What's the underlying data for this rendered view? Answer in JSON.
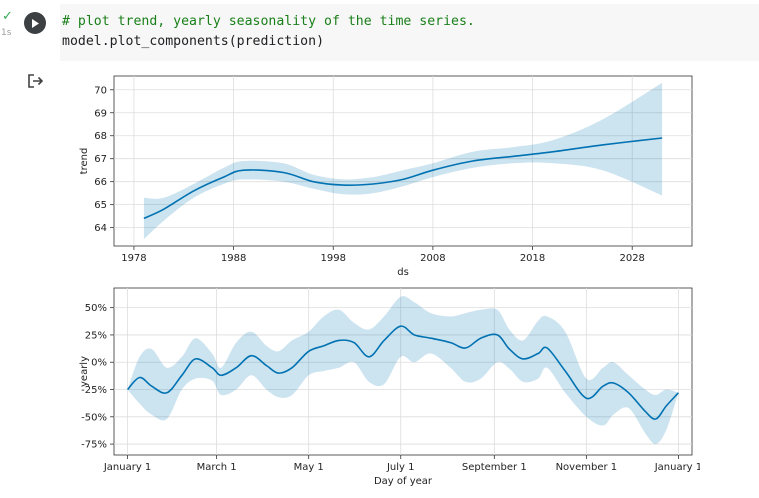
{
  "cell": {
    "status": "✓",
    "exec_time": "1s",
    "code_lines": [
      "# plot trend, yearly seasonality of the time series.",
      "model.plot_components(prediction)"
    ]
  },
  "colors": {
    "line": "#0072b2",
    "band": "#0072b2",
    "grid": "#dddddd",
    "comment": "#1a801a"
  },
  "icons": {
    "run": "play-icon",
    "output": "output-redirect-icon"
  },
  "chart_data": [
    {
      "type": "line",
      "xlabel": "ds",
      "ylabel": "trend",
      "xlim": [
        1976,
        2034
      ],
      "ylim": [
        63.2,
        70.6
      ],
      "xticks": [
        "1978",
        "1988",
        "1998",
        "2008",
        "2018",
        "2028"
      ],
      "yticks": [
        "64",
        "65",
        "66",
        "67",
        "68",
        "69",
        "70"
      ],
      "grid": true,
      "series": [
        {
          "x": [
            1979,
            1981,
            1984,
            1987,
            1989,
            1993,
            1996,
            1999,
            2002,
            2005,
            2008,
            2012,
            2016,
            2020,
            2025,
            2031
          ],
          "y": [
            64.4,
            64.8,
            65.6,
            66.2,
            66.5,
            66.4,
            66.0,
            65.85,
            65.9,
            66.1,
            66.5,
            66.9,
            67.1,
            67.3,
            67.6,
            67.9
          ],
          "lower": [
            63.5,
            64.3,
            65.3,
            65.9,
            66.1,
            66.0,
            65.7,
            65.45,
            65.5,
            65.8,
            66.2,
            66.6,
            66.8,
            66.8,
            66.5,
            65.4
          ],
          "upper": [
            65.3,
            65.3,
            65.9,
            66.6,
            66.9,
            66.8,
            66.3,
            66.1,
            66.2,
            66.5,
            66.8,
            67.3,
            67.5,
            67.8,
            68.7,
            70.3
          ]
        }
      ]
    },
    {
      "type": "line",
      "xlabel": "Day of year",
      "ylabel": "yearly",
      "xlim": [
        -9,
        374
      ],
      "ylim": [
        -85,
        68
      ],
      "xticks": [
        "January 1",
        "March 1",
        "May 1",
        "July 1",
        "September 1",
        "November 1",
        "January 1"
      ],
      "xtick_values": [
        0,
        59,
        120,
        181,
        243,
        304,
        365
      ],
      "yticks": [
        "50%",
        "25%",
        "0%",
        "-25%",
        "-50%",
        "-75%"
      ],
      "ytick_values": [
        50,
        25,
        0,
        -25,
        -50,
        -75
      ],
      "grid": true,
      "series": [
        {
          "x": [
            0,
            8,
            16,
            26,
            36,
            45,
            56,
            62,
            72,
            82,
            92,
            100,
            109,
            120,
            130,
            140,
            150,
            160,
            170,
            181,
            190,
            201,
            214,
            224,
            234,
            245,
            253,
            262,
            272,
            278,
            290,
            304,
            315,
            322,
            332,
            343,
            350,
            357,
            365
          ],
          "y": [
            -25,
            -14,
            -22,
            -28,
            -12,
            3,
            -5,
            -12,
            -5,
            6,
            -3,
            -10,
            -5,
            10,
            15,
            20,
            18,
            5,
            20,
            33,
            25,
            22,
            18,
            13,
            22,
            25,
            12,
            3,
            8,
            13,
            -8,
            -33,
            -22,
            -19,
            -28,
            -45,
            -52,
            -40,
            -28
          ],
          "lower": [
            -25,
            -38,
            -48,
            -52,
            -25,
            -15,
            -17,
            -30,
            -25,
            -12,
            -25,
            -32,
            -30,
            -12,
            -8,
            -5,
            0,
            -18,
            -20,
            5,
            0,
            8,
            -5,
            -18,
            -15,
            0,
            -6,
            -18,
            -15,
            -5,
            -28,
            -50,
            -58,
            -48,
            -42,
            -65,
            -75,
            -62,
            -28
          ],
          "upper": [
            -25,
            5,
            12,
            -5,
            5,
            22,
            8,
            -5,
            18,
            28,
            15,
            10,
            20,
            28,
            42,
            48,
            36,
            30,
            42,
            60,
            55,
            45,
            42,
            45,
            48,
            48,
            30,
            20,
            38,
            42,
            28,
            -15,
            -5,
            0,
            -12,
            -25,
            -30,
            -25,
            -28
          ]
        }
      ]
    }
  ]
}
